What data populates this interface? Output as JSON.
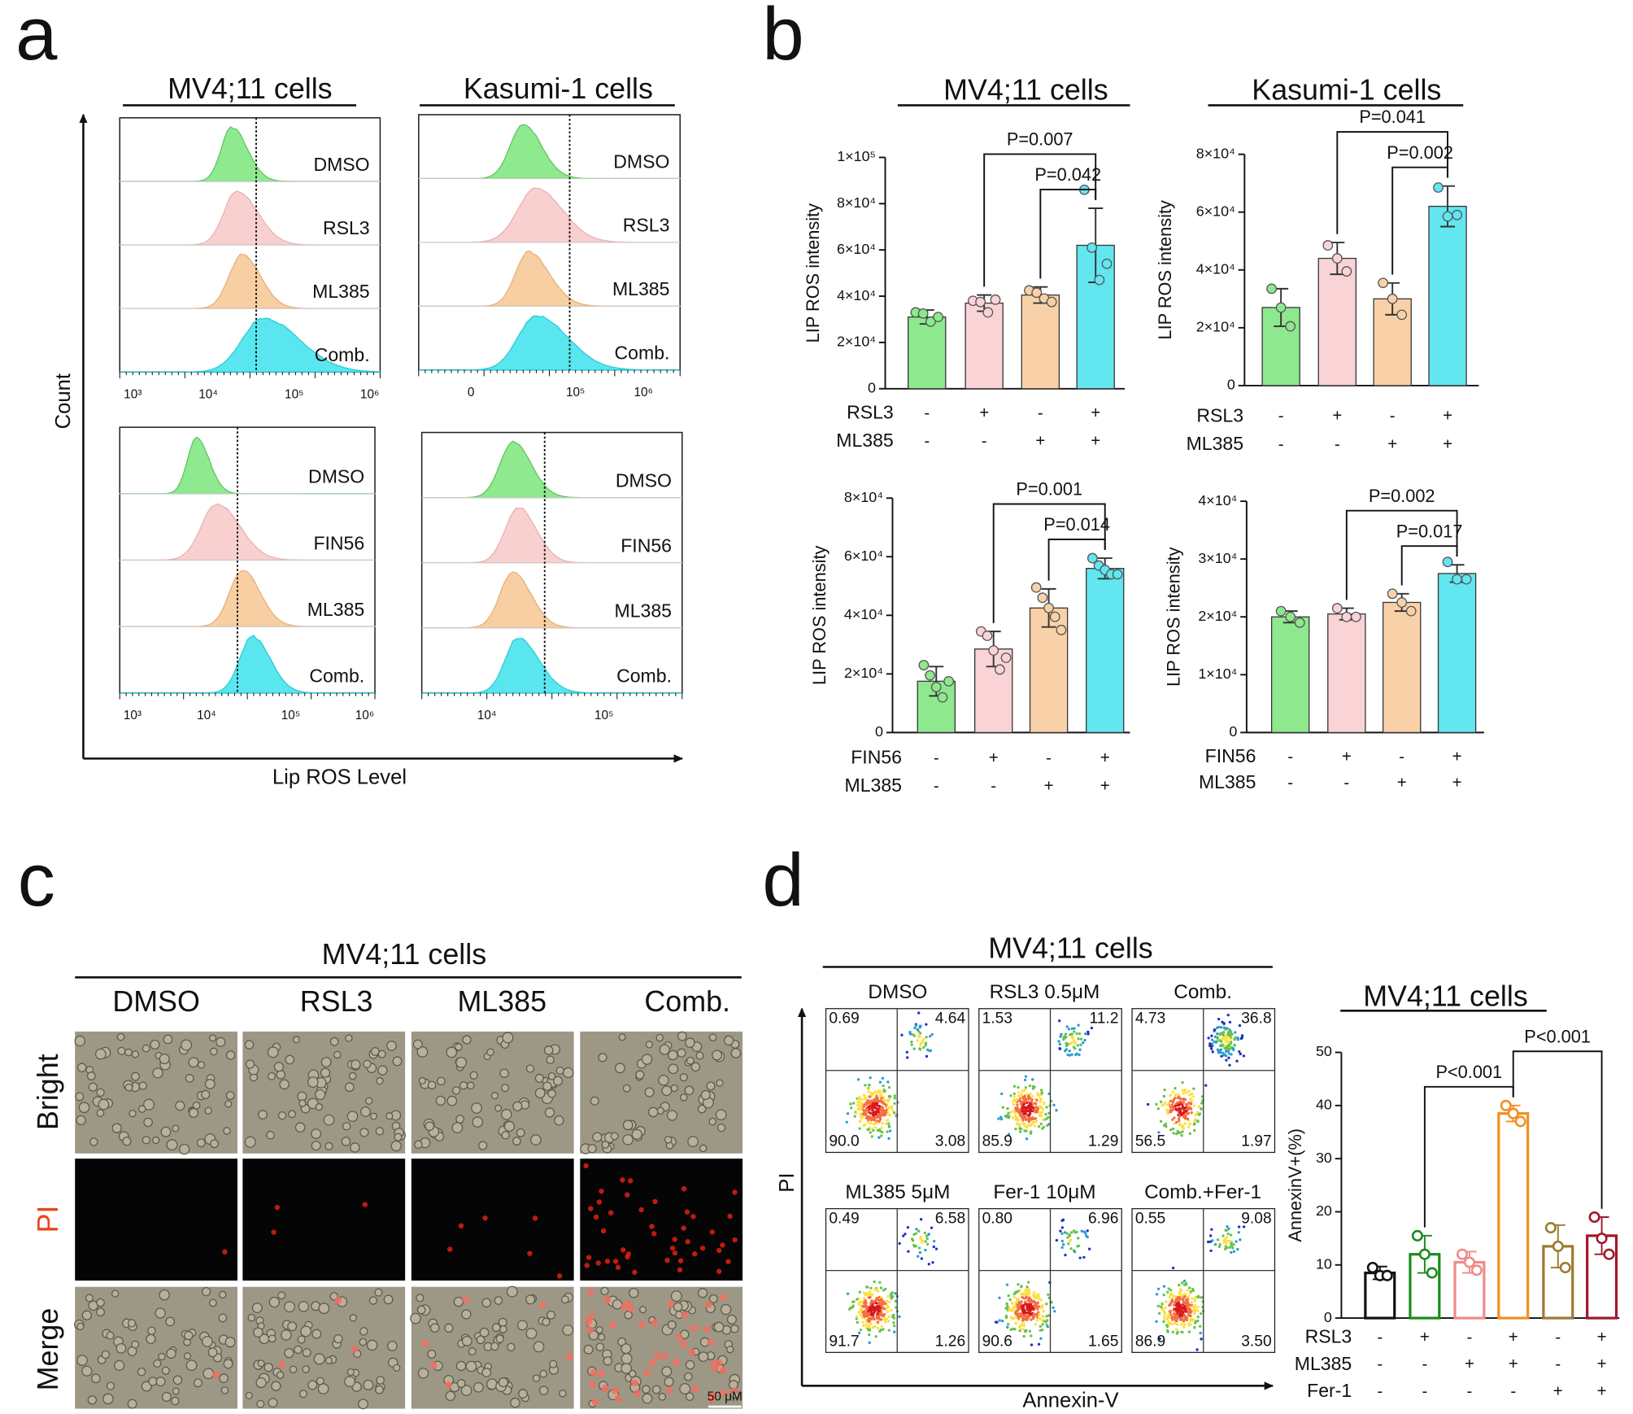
{
  "panel_a": {
    "label": "a",
    "axis_y": "Count",
    "axis_x": "Lip ROS Level",
    "plots": [
      {
        "title": "MV4;11 cells",
        "samples": [
          "DMSO",
          "RSL3",
          "ML385",
          "Comb."
        ],
        "x_tick_labels": [
          "10³",
          "10⁴",
          "10⁵",
          "10⁶"
        ]
      },
      {
        "title": "Kasumi-1 cells",
        "samples": [
          "DMSO",
          "RSL3",
          "ML385",
          "Comb."
        ],
        "x_tick_labels": [
          "0",
          "10⁵",
          "10⁶"
        ]
      },
      {
        "samples": [
          "DMSO",
          "FIN56",
          "ML385",
          "Comb."
        ],
        "x_tick_labels": [
          "10³",
          "10⁴",
          "10⁵",
          "10⁶"
        ]
      },
      {
        "samples": [
          "DMSO",
          "FIN56",
          "ML385",
          "Comb."
        ],
        "x_tick_labels": [
          "10⁴",
          "10⁵"
        ]
      }
    ]
  },
  "panel_b": {
    "label": "b"
  },
  "chart_data": [
    {
      "type": "bar",
      "title": "MV4;11 cells",
      "y_label": "LIP ROS intensity",
      "style": "filled",
      "ylim": [
        0,
        100000
      ],
      "yticks": [
        0,
        {
          "value": 20000,
          "label": "2×10⁴"
        },
        {
          "value": 40000,
          "label": "4×10⁴"
        },
        {
          "value": 60000,
          "label": "6×10⁴"
        },
        {
          "value": 80000,
          "label": "8×10⁴"
        },
        {
          "value": 100000,
          "label": "1×10⁵"
        }
      ],
      "colors": [
        "#8ee88e",
        "#f9d3d6",
        "#f9d1a8",
        "#62e6f0"
      ],
      "values": [
        31000,
        37000,
        40500,
        62000
      ],
      "errors": [
        3000,
        3500,
        3500,
        16000
      ],
      "points": [
        [
          33000,
          32500,
          29000,
          31000
        ],
        [
          38000,
          37500,
          33000,
          38500
        ],
        [
          42500,
          41500,
          39000,
          37500
        ],
        [
          86000,
          61000,
          47000,
          54000
        ]
      ],
      "conditions": [
        {
          "name": "RSL3",
          "values": [
            "-",
            "+",
            "-",
            "+"
          ]
        },
        {
          "name": "ML385",
          "values": [
            "-",
            "-",
            "+",
            "+"
          ]
        }
      ],
      "comparisons": [
        {
          "label": "P=0.007",
          "from": 1,
          "to": 3
        },
        {
          "label": "P=0.042",
          "from": 2,
          "to": 3
        }
      ]
    },
    {
      "type": "bar",
      "title": "Kasumi-1 cells",
      "y_label": "LIP ROS intensity",
      "style": "filled",
      "ylim": [
        0,
        80000
      ],
      "yticks": [
        0,
        {
          "value": 20000,
          "label": "2×10⁴"
        },
        {
          "value": 40000,
          "label": "4×10⁴"
        },
        {
          "value": 60000,
          "label": "6×10⁴"
        },
        {
          "value": 80000,
          "label": "8×10⁴"
        }
      ],
      "colors": [
        "#8ee88e",
        "#f9d3d6",
        "#f9d1a8",
        "#62e6f0"
      ],
      "values": [
        27000,
        44000,
        30000,
        62000
      ],
      "errors": [
        6500,
        5500,
        5500,
        7000
      ],
      "points": [
        [
          33500,
          27000,
          20500
        ],
        [
          48500,
          44000,
          39500
        ],
        [
          35500,
          30000,
          24500
        ],
        [
          68500,
          58500,
          59000
        ]
      ],
      "conditions": [
        {
          "name": "RSL3",
          "values": [
            "-",
            "+",
            "-",
            "+"
          ]
        },
        {
          "name": "ML385",
          "values": [
            "-",
            "-",
            "+",
            "+"
          ]
        }
      ],
      "comparisons": [
        {
          "label": "P=0.041",
          "from": 1,
          "to": 3
        },
        {
          "label": "P=0.002",
          "from": 2,
          "to": 3
        }
      ]
    },
    {
      "type": "bar",
      "y_label": "LIP ROS intensity",
      "style": "filled",
      "ylim": [
        0,
        80000
      ],
      "yticks": [
        0,
        {
          "value": 20000,
          "label": "2×10⁴"
        },
        {
          "value": 40000,
          "label": "4×10⁴"
        },
        {
          "value": 60000,
          "label": "6×10⁴"
        },
        {
          "value": 80000,
          "label": "8×10⁴"
        }
      ],
      "colors": [
        "#8ee88e",
        "#f9d3d6",
        "#f9d1a8",
        "#62e6f0"
      ],
      "values": [
        17500,
        28500,
        42500,
        56000
      ],
      "errors": [
        5000,
        6000,
        6500,
        3500
      ],
      "points": [
        [
          23000,
          19500,
          15500,
          12000,
          17500
        ],
        [
          34500,
          33000,
          28000,
          21500,
          25500
        ],
        [
          49500,
          46000,
          42500,
          39500,
          35000
        ],
        [
          59500,
          57000,
          55500,
          54000,
          54000
        ]
      ],
      "conditions": [
        {
          "name": "FIN56",
          "values": [
            "-",
            "+",
            "-",
            "+"
          ]
        },
        {
          "name": "ML385",
          "values": [
            "-",
            "-",
            "+",
            "+"
          ]
        }
      ],
      "comparisons": [
        {
          "label": "P=0.001",
          "from": 1,
          "to": 3
        },
        {
          "label": "P=0.014",
          "from": 2,
          "to": 3
        }
      ]
    },
    {
      "type": "bar",
      "y_label": "LIP ROS intensity",
      "style": "filled",
      "ylim": [
        0,
        40000
      ],
      "yticks": [
        0,
        {
          "value": 10000,
          "label": "1×10⁴"
        },
        {
          "value": 20000,
          "label": "2×10⁴"
        },
        {
          "value": 30000,
          "label": "3×10⁴"
        },
        {
          "value": 40000,
          "label": "4×10⁴"
        }
      ],
      "colors": [
        "#8ee88e",
        "#f9d3d6",
        "#f9d1a8",
        "#62e6f0"
      ],
      "values": [
        20000,
        20500,
        22500,
        27500
      ],
      "errors": [
        1000,
        1000,
        1500,
        1500
      ],
      "points": [
        [
          21000,
          20000,
          19000
        ],
        [
          21500,
          20000,
          20000
        ],
        [
          24000,
          22500,
          21000
        ],
        [
          29500,
          26500,
          26500
        ]
      ],
      "conditions": [
        {
          "name": "FIN56",
          "values": [
            "-",
            "+",
            "-",
            "+"
          ]
        },
        {
          "name": "ML385",
          "values": [
            "-",
            "-",
            "+",
            "+"
          ]
        }
      ],
      "comparisons": [
        {
          "label": "P=0.002",
          "from": 1,
          "to": 3
        },
        {
          "label": "P=0.017",
          "from": 2,
          "to": 3
        }
      ]
    },
    {
      "type": "bar",
      "title": "MV4;11 cells",
      "y_label": "AnnexinV+(%)",
      "style": "outline",
      "ylim": [
        0,
        50
      ],
      "yticks": [
        0,
        10,
        20,
        30,
        40,
        50
      ],
      "colors": [
        "#111111",
        "#1a8a1a",
        "#f08a8a",
        "#f09020",
        "#9b7a30",
        "#a01828"
      ],
      "values": [
        8.5,
        12,
        10.5,
        38.5,
        13.5,
        15.5
      ],
      "errors": [
        1.2,
        3.5,
        2,
        1.5,
        4,
        3.5
      ],
      "points": [
        [
          9.5,
          8,
          8
        ],
        [
          15.5,
          12,
          8.5
        ],
        [
          12,
          10.5,
          9
        ],
        [
          40,
          38.5,
          37
        ],
        [
          17,
          13.5,
          9.5
        ],
        [
          19,
          15,
          12
        ]
      ],
      "conditions": [
        {
          "name": "RSL3",
          "values": [
            "-",
            "+",
            "-",
            "+",
            "-",
            "+"
          ]
        },
        {
          "name": "ML385",
          "values": [
            "-",
            "-",
            "+",
            "+",
            "-",
            "+"
          ]
        },
        {
          "name": "Fer-1",
          "values": [
            "-",
            "-",
            "-",
            "-",
            "+",
            "+"
          ]
        }
      ],
      "comparisons": [
        {
          "label": "P<0.001",
          "from": 1,
          "to": 3
        },
        {
          "label": "P<0.001",
          "from": 3,
          "to": 5
        }
      ]
    }
  ],
  "panel_c": {
    "label": "c",
    "title": "MV4;11 cells",
    "columns": [
      "DMSO",
      "RSL3",
      "ML385",
      "Comb."
    ],
    "rows": [
      "Bright",
      "PI",
      "Merge"
    ],
    "scale_bar": "50 μM"
  },
  "panel_d": {
    "label": "d",
    "title": "MV4;11 cells",
    "axis_y": "PI",
    "axis_x": "Annexin-V",
    "plots": [
      {
        "title": "DMSO",
        "quadrants": [
          "0.69",
          "4.64",
          "90.0",
          "3.08"
        ]
      },
      {
        "title": "RSL3 0.5μM",
        "quadrants": [
          "1.53",
          "11.2",
          "85.9",
          "1.29"
        ]
      },
      {
        "title": "Comb.",
        "quadrants": [
          "4.73",
          "36.8",
          "56.5",
          "1.97"
        ]
      },
      {
        "title": "ML385  5μM",
        "quadrants": [
          "0.49",
          "6.58",
          "91.7",
          "1.26"
        ]
      },
      {
        "title": "Fer-1 10μM",
        "quadrants": [
          "0.80",
          "6.96",
          "90.6",
          "1.65"
        ]
      },
      {
        "title": "Comb.+Fer-1",
        "quadrants": [
          "0.55",
          "9.08",
          "86.9",
          "3.50"
        ]
      }
    ]
  }
}
